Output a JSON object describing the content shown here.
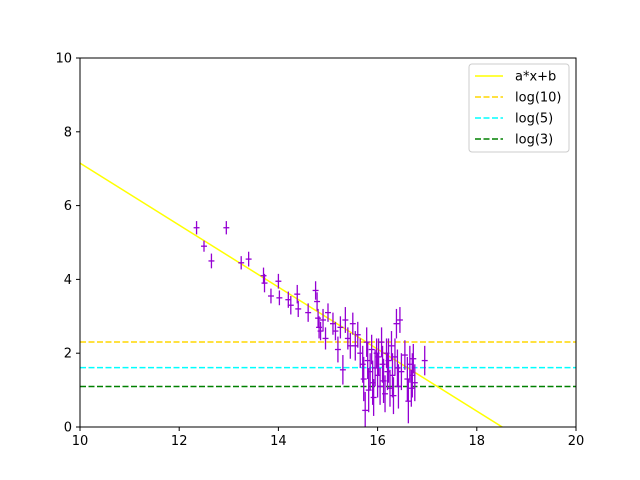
{
  "chart_data": {
    "type": "scatter",
    "title": "",
    "xlabel": "",
    "ylabel": "",
    "xlim": [
      10,
      20
    ],
    "ylim": [
      0,
      10
    ],
    "xticks": [
      "10",
      "12",
      "14",
      "16",
      "18",
      "20"
    ],
    "yticks": [
      "0",
      "2",
      "4",
      "6",
      "8",
      "10"
    ],
    "grid": false,
    "legend_position": "top-right",
    "fit_line": {
      "label": "a*x+b",
      "color": "#ffff00",
      "slope": -0.84,
      "intercept": 15.55
    },
    "hlines": [
      {
        "label": "log(10)",
        "value": 2.3026,
        "color": "#ffd700",
        "style": "dashed"
      },
      {
        "label": "log(5)",
        "value": 1.6094,
        "color": "#00ffff",
        "style": "dashed"
      },
      {
        "label": "log(3)",
        "value": 1.0986,
        "color": "#008000",
        "style": "dashed"
      }
    ],
    "points": {
      "color": "#9400d3",
      "xerr": 0.06,
      "data": [
        [
          12.35,
          5.4,
          0.18
        ],
        [
          12.5,
          4.9,
          0.15
        ],
        [
          12.65,
          4.5,
          0.2
        ],
        [
          12.95,
          5.4,
          0.18
        ],
        [
          13.25,
          4.45,
          0.18
        ],
        [
          13.4,
          4.55,
          0.2
        ],
        [
          13.7,
          4.1,
          0.22
        ],
        [
          13.72,
          3.9,
          0.25
        ],
        [
          13.85,
          3.55,
          0.2
        ],
        [
          14.0,
          3.95,
          0.2
        ],
        [
          14.02,
          3.5,
          0.2
        ],
        [
          14.2,
          3.45,
          0.22
        ],
        [
          14.25,
          3.3,
          0.25
        ],
        [
          14.38,
          3.6,
          0.25
        ],
        [
          14.4,
          3.2,
          0.22
        ],
        [
          14.6,
          3.1,
          0.25
        ],
        [
          14.75,
          3.7,
          0.25
        ],
        [
          14.78,
          3.4,
          0.25
        ],
        [
          14.8,
          2.95,
          0.25
        ],
        [
          14.82,
          2.7,
          0.3
        ],
        [
          14.85,
          2.6,
          0.25
        ],
        [
          14.9,
          2.9,
          0.3
        ],
        [
          14.95,
          2.4,
          0.3
        ],
        [
          15.0,
          3.1,
          0.25
        ],
        [
          15.1,
          2.8,
          0.3
        ],
        [
          15.15,
          2.6,
          0.25
        ],
        [
          15.2,
          2.1,
          0.35
        ],
        [
          15.25,
          2.7,
          0.3
        ],
        [
          15.3,
          1.55,
          0.4
        ],
        [
          15.35,
          2.9,
          0.35
        ],
        [
          15.4,
          2.4,
          0.3
        ],
        [
          15.45,
          2.2,
          0.35
        ],
        [
          15.5,
          2.8,
          0.3
        ],
        [
          15.55,
          2.2,
          0.4
        ],
        [
          15.6,
          2.5,
          0.35
        ],
        [
          15.65,
          2.0,
          0.4
        ],
        [
          15.7,
          1.7,
          0.5
        ],
        [
          15.72,
          1.3,
          0.6
        ],
        [
          15.75,
          0.45,
          0.5
        ],
        [
          15.78,
          2.3,
          0.4
        ],
        [
          15.8,
          1.8,
          0.5
        ],
        [
          15.82,
          1.0,
          0.6
        ],
        [
          15.85,
          1.5,
          0.5
        ],
        [
          15.88,
          2.1,
          0.4
        ],
        [
          15.9,
          1.2,
          0.6
        ],
        [
          15.92,
          0.8,
          0.5
        ],
        [
          15.95,
          1.6,
          0.5
        ],
        [
          15.98,
          2.0,
          0.4
        ],
        [
          16.0,
          1.4,
          0.6
        ],
        [
          16.02,
          1.9,
          0.5
        ],
        [
          16.05,
          1.1,
          0.5
        ],
        [
          16.08,
          2.3,
          0.4
        ],
        [
          16.1,
          1.7,
          0.5
        ],
        [
          16.12,
          1.25,
          0.6
        ],
        [
          16.15,
          0.9,
          0.5
        ],
        [
          16.18,
          2.0,
          0.4
        ],
        [
          16.2,
          1.5,
          0.5
        ],
        [
          16.22,
          1.8,
          0.6
        ],
        [
          16.25,
          1.05,
          0.5
        ],
        [
          16.28,
          2.2,
          0.4
        ],
        [
          16.3,
          1.4,
          0.6
        ],
        [
          16.32,
          0.85,
          0.5
        ],
        [
          16.35,
          1.9,
          0.5
        ],
        [
          16.38,
          2.8,
          0.4
        ],
        [
          16.4,
          1.6,
          0.5
        ],
        [
          16.42,
          1.1,
          0.6
        ],
        [
          16.45,
          2.9,
          0.35
        ],
        [
          16.48,
          1.5,
          0.5
        ],
        [
          16.55,
          1.95,
          0.4
        ],
        [
          16.6,
          1.3,
          0.6
        ],
        [
          16.62,
          0.7,
          0.6
        ],
        [
          16.65,
          1.7,
          0.5
        ],
        [
          16.68,
          1.05,
          0.5
        ],
        [
          16.7,
          1.4,
          0.6
        ],
        [
          16.72,
          1.85,
          0.4
        ],
        [
          16.75,
          1.2,
          0.5
        ],
        [
          16.95,
          1.8,
          0.4
        ]
      ]
    }
  }
}
